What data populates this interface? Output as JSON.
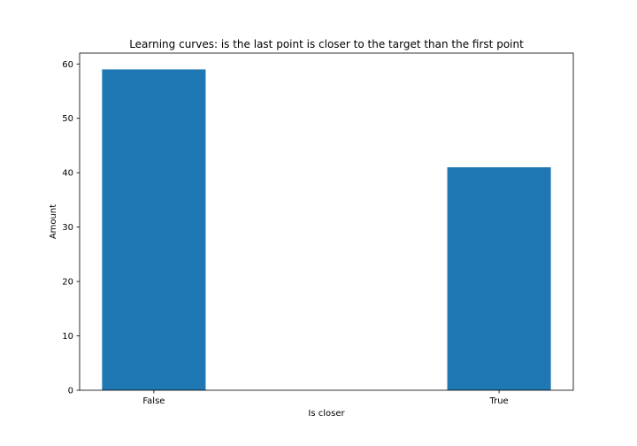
{
  "chart_data": {
    "type": "bar",
    "title": "Learning curves: is the last point is closer to the target than the first point",
    "xlabel": "Is closer",
    "ylabel": "Amount",
    "categories": [
      "False",
      "True"
    ],
    "values": [
      59,
      41
    ],
    "ylim": [
      0,
      62
    ],
    "yticks": [
      0,
      10,
      20,
      30,
      40,
      50,
      60
    ],
    "grid": false,
    "bar_color": "#1f77b4"
  }
}
